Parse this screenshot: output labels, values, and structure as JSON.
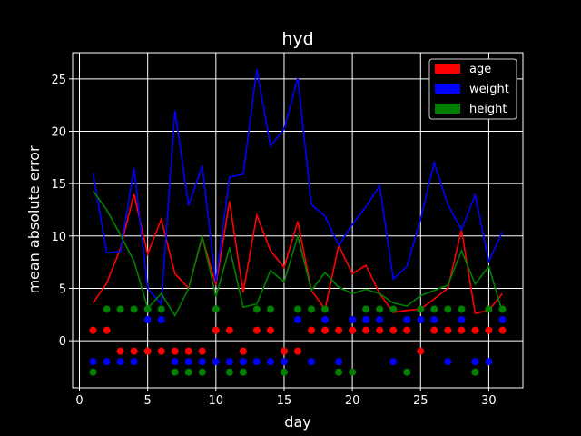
{
  "chart_data": {
    "type": "line",
    "title": "hyd",
    "xlabel": "day",
    "ylabel": "mean absolute error",
    "xlim": [
      -0.5,
      32.5
    ],
    "ylim": [
      -4.5,
      27.5
    ],
    "xticks": [
      0,
      5,
      10,
      15,
      20,
      25,
      30
    ],
    "yticks": [
      0,
      5,
      10,
      15,
      20,
      25
    ],
    "grid": true,
    "legend_position": "top-right",
    "background": "#000000",
    "foreground": "#ffffff",
    "x": [
      1,
      2,
      3,
      4,
      5,
      6,
      7,
      8,
      9,
      10,
      11,
      12,
      13,
      14,
      15,
      16,
      17,
      18,
      19,
      20,
      21,
      22,
      23,
      24,
      25,
      26,
      27,
      28,
      29,
      30,
      31
    ],
    "series": [
      {
        "name": "age",
        "color": "#ff0000",
        "values": [
          3.6,
          5.5,
          8.8,
          14.0,
          8.3,
          11.6,
          6.4,
          5.0,
          9.9,
          5.3,
          13.3,
          4.6,
          12.0,
          8.6,
          7.0,
          11.4,
          4.8,
          3.0,
          9.1,
          6.4,
          7.2,
          4.5,
          2.7,
          2.9,
          3.0,
          4.0,
          5.0,
          10.6,
          2.6,
          2.9,
          4.5
        ],
        "markers": [
          1,
          1,
          -1,
          -1,
          -1,
          -1,
          -1,
          -1,
          -1,
          1,
          1,
          -1,
          1,
          1,
          -1,
          -1,
          1,
          1,
          1,
          1,
          1,
          1,
          1,
          1,
          -1,
          1,
          1,
          1,
          1,
          1,
          1
        ]
      },
      {
        "name": "weight",
        "color": "#0000ff",
        "values": [
          16.0,
          8.4,
          8.5,
          16.5,
          5.0,
          3.5,
          22.0,
          12.9,
          16.7,
          5.6,
          15.6,
          15.9,
          25.9,
          18.6,
          20.2,
          25.1,
          13.0,
          11.9,
          9.1,
          11.1,
          12.8,
          14.8,
          5.9,
          7.1,
          11.6,
          17.0,
          13.0,
          10.6,
          13.9,
          7.6,
          10.4
        ],
        "markers": [
          -2,
          -2,
          -2,
          -2,
          2,
          2,
          -2,
          -2,
          -2,
          -2,
          -2,
          -2,
          -2,
          -2,
          -2,
          2,
          -2,
          2,
          -2,
          2,
          2,
          2,
          -2,
          2,
          2,
          2,
          -2,
          2,
          -2,
          -2,
          2
        ]
      },
      {
        "name": "height",
        "color": "#008000",
        "values": [
          14.3,
          12.5,
          10.1,
          7.6,
          3.1,
          4.5,
          2.4,
          5.0,
          10.0,
          4.2,
          8.9,
          3.2,
          3.5,
          6.7,
          5.6,
          10.0,
          4.8,
          6.5,
          5.1,
          4.5,
          4.9,
          4.5,
          3.6,
          3.3,
          4.3,
          4.8,
          5.3,
          8.6,
          5.4,
          7.1,
          2.7
        ],
        "markers": [
          -3,
          3,
          3,
          3,
          3,
          3,
          -3,
          -3,
          -3,
          3,
          -3,
          -3,
          3,
          3,
          -3,
          3,
          3,
          3,
          -3,
          -3,
          3,
          3,
          3,
          -3,
          3,
          3,
          3,
          3,
          -3,
          3,
          3
        ]
      }
    ]
  }
}
